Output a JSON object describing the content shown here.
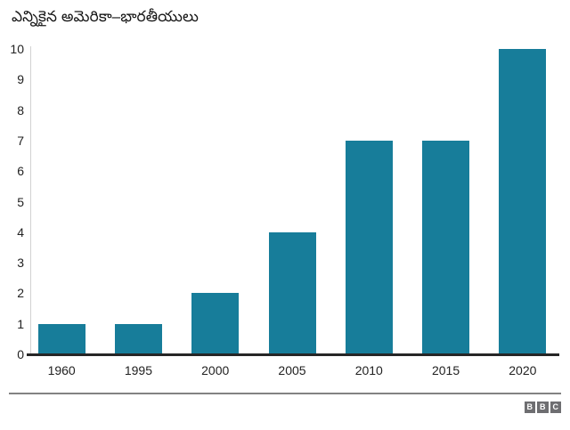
{
  "header": {
    "title": "ఎన్నికైన అమెరికా–భారతీయులు"
  },
  "chart_data": {
    "type": "bar",
    "title": "ఎన్నికైన అమెరికా–భారతీయులు",
    "categories": [
      "1960",
      "1995",
      "2000",
      "2005",
      "2010",
      "2015",
      "2020"
    ],
    "values": [
      1,
      1,
      2,
      4,
      7,
      7,
      10
    ],
    "xlabel": "",
    "ylabel": "",
    "ylim": [
      0,
      10
    ],
    "yticks": [
      0,
      1,
      2,
      3,
      4,
      5,
      6,
      7,
      8,
      9,
      10
    ],
    "grid": false,
    "legend": "none",
    "bar_color": "#177D9A"
  },
  "footer": {
    "logo_letters": [
      "B",
      "B",
      "C"
    ]
  },
  "colors": {
    "bar": "#177D9A",
    "axis_line": "#d2d2d2",
    "baseline": "#262626",
    "text": "#222222",
    "title_text": "#161616",
    "separator": "#828282",
    "logo_background": "#6e6e71",
    "logo_text": "#ffffff"
  }
}
